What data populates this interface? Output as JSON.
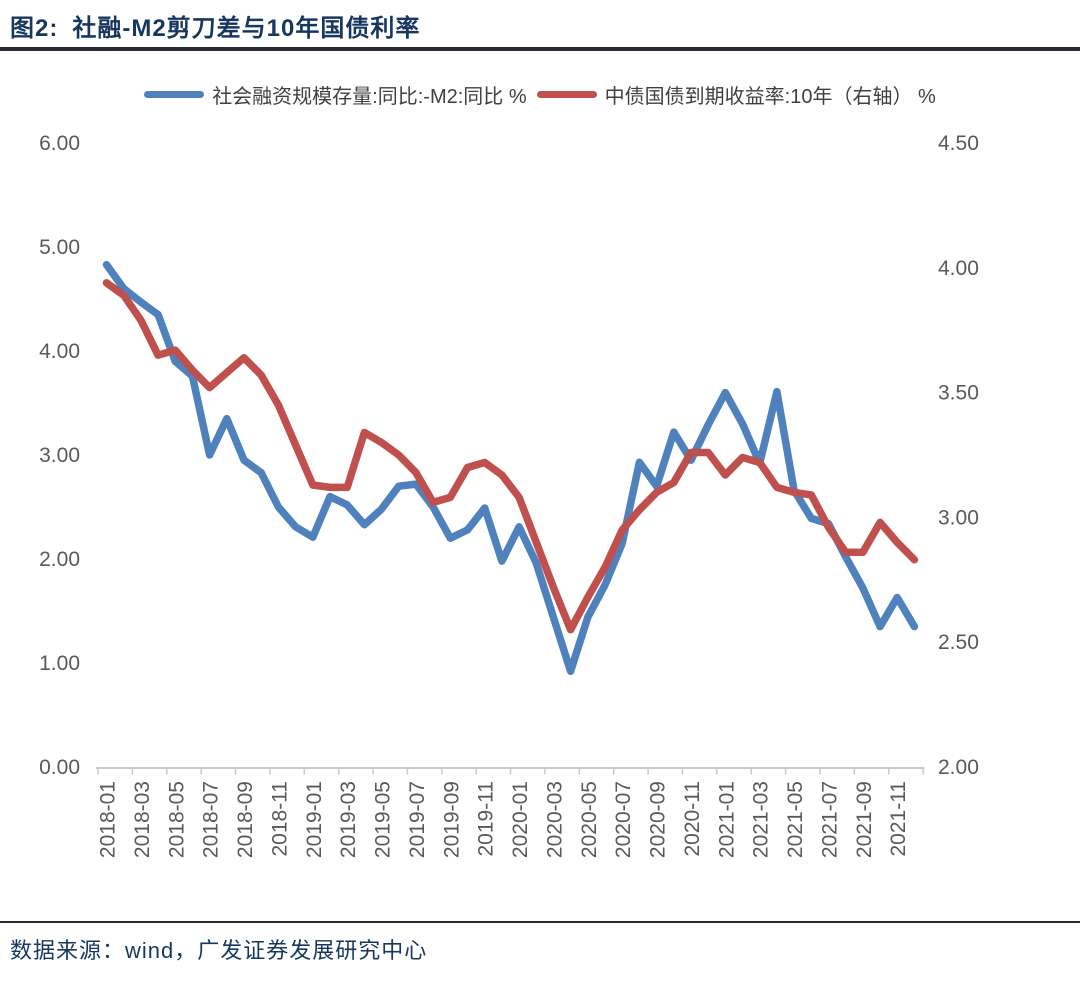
{
  "title": {
    "prefix": "图2:",
    "text": "社融-M2剪刀差与10年国债利率"
  },
  "legend": [
    {
      "label": "社会融资规模存量:同比:-M2:同比 %",
      "color": "#4F81BD"
    },
    {
      "label": "中债国债到期收益率:10年（右轴） %",
      "color": "#C0504D"
    }
  ],
  "footer": {
    "source_text": "数据来源：wind，广发证券发展研究中心"
  },
  "colors": {
    "title": "#17375E",
    "rule": "#262A33",
    "axis_line": "#C9C9C9",
    "tick_label": "#595959",
    "series_blue": "#4F81BD",
    "series_red": "#C0504D"
  },
  "chart_data": {
    "type": "line",
    "title": "社融-M2剪刀差与10年国债利率",
    "xlabel": "",
    "ylabel_left": "%",
    "ylabel_right": "%",
    "grid": false,
    "legend_position": "top",
    "x_tick_interval": 2,
    "x": [
      "2018-01",
      "2018-02",
      "2018-03",
      "2018-04",
      "2018-05",
      "2018-06",
      "2018-07",
      "2018-08",
      "2018-09",
      "2018-10",
      "2018-11",
      "2018-12",
      "2019-01",
      "2019-02",
      "2019-03",
      "2019-04",
      "2019-05",
      "2019-06",
      "2019-07",
      "2019-08",
      "2019-09",
      "2019-10",
      "2019-11",
      "2019-12",
      "2020-01",
      "2020-02",
      "2020-03",
      "2020-04",
      "2020-05",
      "2020-06",
      "2020-07",
      "2020-08",
      "2020-09",
      "2020-10",
      "2020-11",
      "2020-12",
      "2021-01",
      "2021-02",
      "2021-03",
      "2021-04",
      "2021-05",
      "2021-06",
      "2021-07",
      "2021-08",
      "2021-09",
      "2021-10",
      "2021-11",
      "2021-12"
    ],
    "left_axis": {
      "min": 0,
      "max": 6,
      "ticks": [
        "6.00",
        "5.00",
        "4.00",
        "3.00",
        "2.00",
        "1.00",
        "0.00"
      ]
    },
    "right_axis": {
      "min": 2,
      "max": 4.5,
      "ticks": [
        "4.50",
        "4.00",
        "3.50",
        "3.00",
        "2.50",
        "2.00"
      ]
    },
    "series": [
      {
        "name": "社会融资规模存量:同比:-M2:同比",
        "axis": "left",
        "color": "#4F81BD",
        "values": [
          4.83,
          4.6,
          4.47,
          4.35,
          3.9,
          3.76,
          3.0,
          3.35,
          2.95,
          2.83,
          2.5,
          2.31,
          2.21,
          2.6,
          2.52,
          2.33,
          2.48,
          2.7,
          2.72,
          2.5,
          2.2,
          2.28,
          2.49,
          1.98,
          2.31,
          1.96,
          1.44,
          0.92,
          1.44,
          1.75,
          2.15,
          2.93,
          2.7,
          3.22,
          2.95,
          3.29,
          3.6,
          3.3,
          2.92,
          3.61,
          2.66,
          2.39,
          2.34,
          2.02,
          1.72,
          1.35,
          1.63,
          1.35
        ]
      },
      {
        "name": "中债国债到期收益率:10年（右轴）",
        "axis": "right",
        "color": "#C0504D",
        "values": [
          3.94,
          3.89,
          3.79,
          3.65,
          3.67,
          3.59,
          3.52,
          3.58,
          3.64,
          3.57,
          3.45,
          3.29,
          3.13,
          3.12,
          3.12,
          3.34,
          3.3,
          3.25,
          3.18,
          3.06,
          3.08,
          3.2,
          3.22,
          3.17,
          3.08,
          2.9,
          2.72,
          2.55,
          2.68,
          2.8,
          2.95,
          3.03,
          3.1,
          3.14,
          3.26,
          3.26,
          3.17,
          3.24,
          3.22,
          3.12,
          3.1,
          3.09,
          2.96,
          2.86,
          2.86,
          2.98,
          2.9,
          2.83
        ]
      }
    ]
  }
}
